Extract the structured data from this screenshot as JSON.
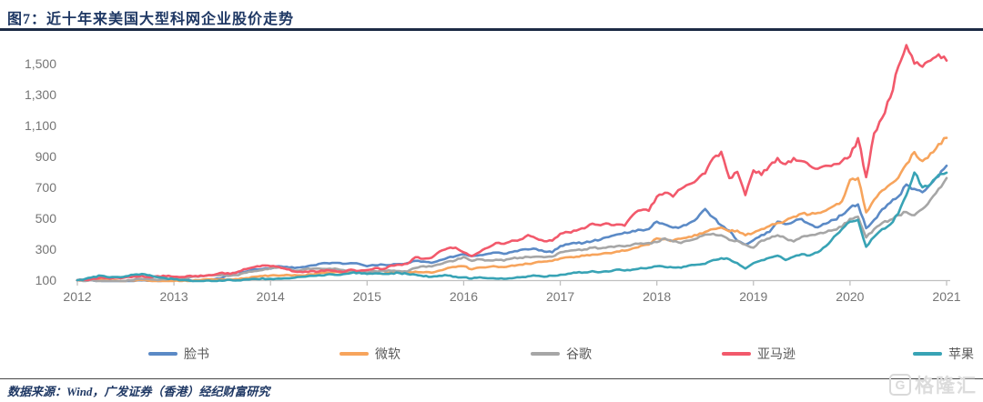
{
  "header": {
    "title": "图7：近十年来美国大型科网企业股价走势"
  },
  "footer": {
    "source": "数据来源：Wind，广发证券（香港）经纪财富研究"
  },
  "watermark": {
    "text": "格隆汇",
    "icon": "gelonghui-logo"
  },
  "colors": {
    "title": "#1F3864",
    "title_rule": "#1C2B45",
    "axis_text": "#757575",
    "axis_line": "#C0C0C0",
    "legend_text": "#595959",
    "footer_rule": "#474747",
    "footer_text": "#1F3864",
    "watermark": "#D9D9D9"
  },
  "chart_data": {
    "type": "line",
    "title": "图7：近十年来美国大型科网企业股价走势",
    "xlabel": "",
    "ylabel": "",
    "x_unit": "monthly from 2012-01 to 2021-01 (rebased, Jan 2012 = 100)",
    "x_tick_labels": [
      "2012",
      "2013",
      "2014",
      "2015",
      "2016",
      "2017",
      "2018",
      "2019",
      "2020",
      "2021"
    ],
    "y_ticks": [
      100,
      300,
      500,
      700,
      900,
      1100,
      1300,
      1500
    ],
    "y_tick_labels": [
      "100",
      "300",
      "500",
      "700",
      "900",
      "1,100",
      "1,300",
      "1,500"
    ],
    "ylim": [
      100,
      1650
    ],
    "grid": false,
    "legend_position": "bottom",
    "series": [
      {
        "name": "脸书",
        "key": "facebook",
        "color": "#5B8AC6",
        "values": [
          100,
          99,
          97,
          95,
          92,
          90,
          92,
          95,
          98,
          96,
          94,
          98,
          100,
          102,
          99,
          96,
          102,
          105,
          115,
          140,
          152,
          155,
          170,
          172,
          175,
          190,
          186,
          178,
          185,
          195,
          205,
          210,
          212,
          205,
          210,
          205,
          190,
          196,
          200,
          198,
          204,
          210,
          225,
          220,
          212,
          228,
          245,
          255,
          268,
          255,
          262,
          270,
          278,
          270,
          282,
          295,
          298,
          302,
          285,
          280,
          320,
          332,
          338,
          342,
          352,
          362,
          378,
          395,
          408,
          418,
          425,
          430,
          478,
          460,
          440,
          445,
          468,
          500,
          560,
          505,
          455,
          420,
          355,
          330,
          358,
          392,
          412,
          478,
          462,
          478,
          495,
          462,
          442,
          465,
          490,
          520,
          568,
          590,
          436,
          490,
          558,
          600,
          640,
          718,
          690,
          668,
          720,
          770,
          840
        ]
      },
      {
        "name": "微软",
        "key": "microsoft",
        "color": "#F7A45C",
        "values": [
          100,
          103,
          106,
          104,
          99,
          97,
          95,
          98,
          101,
          96,
          91,
          89,
          95,
          93,
          95,
          99,
          105,
          103,
          106,
          104,
          106,
          113,
          122,
          126,
          130,
          128,
          134,
          133,
          130,
          138,
          142,
          148,
          152,
          150,
          158,
          155,
          145,
          148,
          140,
          152,
          156,
          148,
          155,
          150,
          148,
          162,
          178,
          185,
          190,
          170,
          182,
          185,
          188,
          184,
          195,
          200,
          205,
          215,
          220,
          225,
          240,
          248,
          252,
          258,
          265,
          268,
          275,
          285,
          290,
          305,
          322,
          330,
          370,
          365,
          355,
          368,
          380,
          390,
          412,
          430,
          440,
          415,
          420,
          390,
          406,
          430,
          450,
          470,
          485,
          510,
          530,
          525,
          535,
          550,
          580,
          610,
          748,
          760,
          538,
          620,
          680,
          720,
          762,
          850,
          928,
          870,
          920,
          980,
          1020
        ]
      },
      {
        "name": "谷歌",
        "key": "google",
        "color": "#A6A6A6",
        "values": [
          100,
          95,
          98,
          95,
          92,
          90,
          94,
          102,
          108,
          105,
          100,
          104,
          110,
          115,
          118,
          122,
          128,
          132,
          134,
          128,
          132,
          148,
          158,
          165,
          178,
          182,
          175,
          160,
          168,
          172,
          175,
          172,
          175,
          165,
          162,
          158,
          150,
          158,
          162,
          160,
          158,
          156,
          178,
          190,
          188,
          202,
          220,
          228,
          250,
          225,
          235,
          228,
          232,
          226,
          240,
          245,
          250,
          252,
          248,
          252,
          280,
          288,
          295,
          298,
          310,
          305,
          315,
          320,
          318,
          330,
          338,
          340,
          346,
          370,
          350,
          340,
          355,
          370,
          395,
          400,
          390,
          360,
          355,
          330,
          310,
          355,
          370,
          390,
          370,
          350,
          380,
          390,
          400,
          410,
          425,
          445,
          496,
          510,
          376,
          430,
          470,
          490,
          520,
          540,
          520,
          560,
          620,
          690,
          760
        ]
      },
      {
        "name": "亚马逊",
        "key": "amazon",
        "color": "#F2596B",
        "values": [
          100,
          102,
          110,
          118,
          110,
          115,
          118,
          124,
          128,
          118,
          126,
          125,
          122,
          120,
          128,
          124,
          130,
          135,
          148,
          140,
          155,
          172,
          185,
          195,
          190,
          186,
          170,
          155,
          152,
          158,
          155,
          165,
          160,
          152,
          168,
          160,
          165,
          178,
          172,
          195,
          200,
          205,
          248,
          238,
          245,
          285,
          305,
          310,
          280,
          255,
          282,
          310,
          340,
          335,
          355,
          362,
          392,
          370,
          352,
          355,
          400,
          410,
          420,
          435,
          465,
          455,
          465,
          460,
          452,
          520,
          552,
          548,
          640,
          665,
          640,
          690,
          720,
          750,
          790,
          890,
          930,
          760,
          800,
          650,
          810,
          780,
          840,
          890,
          850,
          890,
          870,
          840,
          820,
          840,
          850,
          870,
          900,
          1018,
          766,
          1050,
          1150,
          1280,
          1480,
          1620,
          1500,
          1480,
          1520,
          1560,
          1520
        ]
      },
      {
        "name": "苹果",
        "key": "apple",
        "color": "#38A3B5",
        "values": [
          100,
          108,
          122,
          128,
          118,
          120,
          125,
          135,
          140,
          132,
          118,
          112,
          105,
          100,
          96,
          94,
          97,
          93,
          96,
          102,
          99,
          104,
          108,
          112,
          108,
          110,
          112,
          116,
          122,
          128,
          132,
          136,
          134,
          138,
          146,
          148,
          140,
          144,
          140,
          144,
          146,
          140,
          136,
          125,
          122,
          128,
          130,
          122,
          118,
          110,
          118,
          112,
          110,
          108,
          112,
          118,
          125,
          128,
          122,
          128,
          135,
          142,
          148,
          150,
          158,
          152,
          155,
          168,
          162,
          168,
          178,
          180,
          190,
          185,
          182,
          180,
          195,
          200,
          205,
          230,
          242,
          235,
          210,
          175,
          210,
          228,
          245,
          258,
          230,
          252,
          268,
          260,
          280,
          320,
          380,
          430,
          478,
          490,
          316,
          380,
          430,
          460,
          530,
          650,
          796,
          700,
          720,
          780,
          795
        ]
      }
    ]
  }
}
